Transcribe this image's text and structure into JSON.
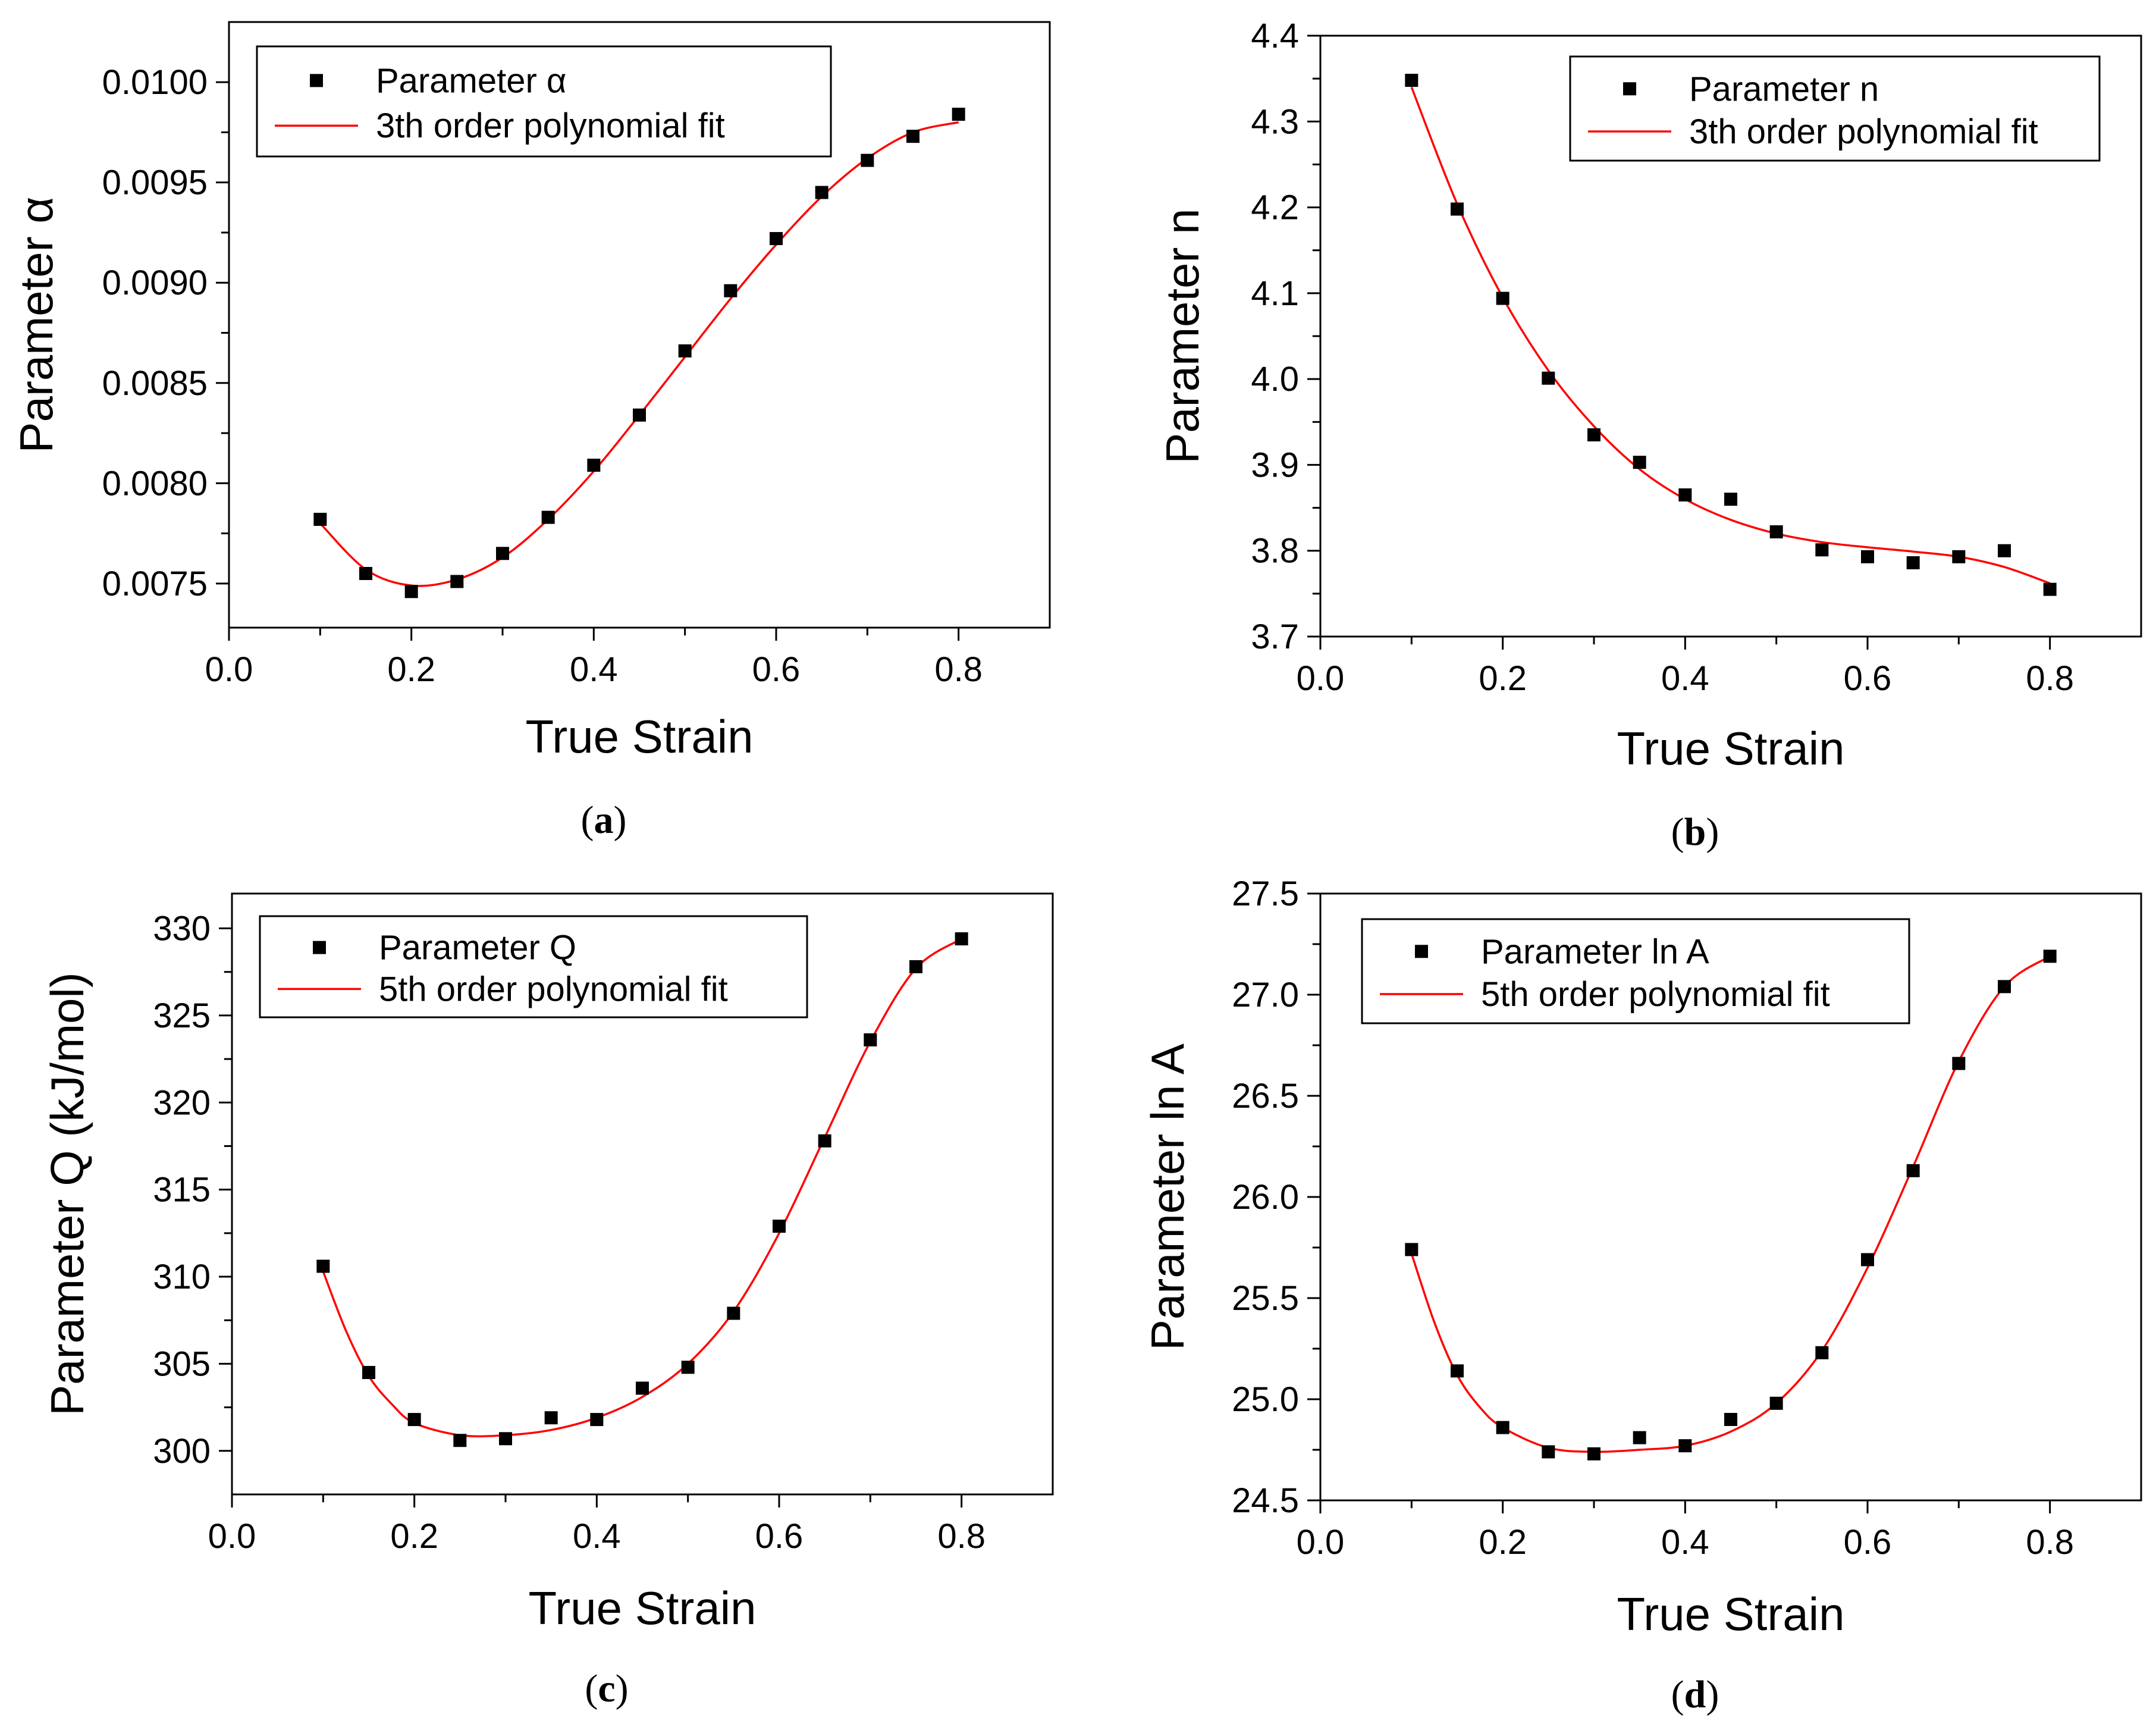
{
  "figure": {
    "background": "#ffffff",
    "marker_color": "#000000",
    "fit_color": "#ff0000"
  },
  "chart_data": [
    {
      "id": "a",
      "type": "scatter",
      "panel_label": "a",
      "xlabel": "True Strain",
      "ylabel": "Parameter α",
      "xlim": [
        0.0,
        0.9
      ],
      "ylim": [
        0.00728,
        0.0103
      ],
      "xticks": [
        0.0,
        0.2,
        0.4,
        0.6,
        0.8
      ],
      "xtick_labels": [
        "0.0",
        "0.2",
        "0.4",
        "0.6",
        "0.8"
      ],
      "yticks": [
        0.0075,
        0.008,
        0.0085,
        0.009,
        0.0095,
        0.01
      ],
      "ytick_labels": [
        "0.0075",
        "0.0080",
        "0.0085",
        "0.0090",
        "0.0095",
        "0.0100"
      ],
      "legend": {
        "placement": "top-left",
        "scatter_label": "Parameter α",
        "fit_label": "3th order polynomial fit"
      },
      "series": [
        {
          "name": "Parameter α",
          "x": [
            0.1,
            0.15,
            0.2,
            0.25,
            0.3,
            0.35,
            0.4,
            0.45,
            0.5,
            0.55,
            0.6,
            0.65,
            0.7,
            0.75,
            0.8
          ],
          "y": [
            0.00782,
            0.00755,
            0.00746,
            0.00751,
            0.00765,
            0.00783,
            0.00809,
            0.00834,
            0.00866,
            0.00896,
            0.00922,
            0.00945,
            0.00961,
            0.00973,
            0.00984
          ]
        }
      ],
      "fit": {
        "name": "3th order polynomial fit",
        "x": [
          0.1,
          0.15,
          0.2,
          0.25,
          0.3,
          0.35,
          0.4,
          0.45,
          0.5,
          0.55,
          0.6,
          0.65,
          0.7,
          0.75,
          0.8
        ],
        "y": [
          0.0078,
          0.00757,
          0.00749,
          0.00752,
          0.00763,
          0.00782,
          0.00806,
          0.00834,
          0.00863,
          0.00892,
          0.00919,
          0.00943,
          0.00962,
          0.00975,
          0.0098
        ]
      }
    },
    {
      "id": "b",
      "type": "scatter",
      "panel_label": "b",
      "xlabel": "True Strain",
      "ylabel": "Parameter n",
      "xlim": [
        0.0,
        0.9
      ],
      "ylim": [
        3.7,
        4.4
      ],
      "xticks": [
        0.0,
        0.2,
        0.4,
        0.6,
        0.8
      ],
      "xtick_labels": [
        "0.0",
        "0.2",
        "0.4",
        "0.6",
        "0.8"
      ],
      "yticks": [
        3.7,
        3.8,
        3.9,
        4.0,
        4.1,
        4.2,
        4.3,
        4.4
      ],
      "ytick_labels": [
        "3.7",
        "3.8",
        "3.9",
        "4.0",
        "4.1",
        "4.2",
        "4.3",
        "4.4"
      ],
      "legend": {
        "placement": "top-right",
        "scatter_label": "Parameter n",
        "fit_label": "3th order polynomial fit"
      },
      "series": [
        {
          "name": "Parameter n",
          "x": [
            0.1,
            0.15,
            0.2,
            0.25,
            0.3,
            0.35,
            0.4,
            0.45,
            0.5,
            0.55,
            0.6,
            0.65,
            0.7,
            0.75,
            0.8
          ],
          "y": [
            4.348,
            4.198,
            4.094,
            4.001,
            3.935,
            3.903,
            3.865,
            3.86,
            3.822,
            3.801,
            3.793,
            3.786,
            3.793,
            3.8,
            3.755
          ]
        }
      ],
      "fit": {
        "name": "3th order polynomial fit",
        "x": [
          0.1,
          0.15,
          0.2,
          0.25,
          0.3,
          0.35,
          0.4,
          0.45,
          0.5,
          0.55,
          0.6,
          0.65,
          0.7,
          0.75,
          0.8
        ],
        "y": [
          4.34,
          4.204,
          4.095,
          4.01,
          3.945,
          3.895,
          3.86,
          3.836,
          3.82,
          3.81,
          3.804,
          3.799,
          3.793,
          3.781,
          3.762
        ]
      }
    },
    {
      "id": "c",
      "type": "scatter",
      "panel_label": "c",
      "xlabel": "True Strain",
      "ylabel": "Parameter Q (kJ/mol)",
      "xlim": [
        0.0,
        0.9
      ],
      "ylim": [
        297.5,
        332.0
      ],
      "xticks": [
        0.0,
        0.2,
        0.4,
        0.6,
        0.8
      ],
      "xtick_labels": [
        "0.0",
        "0.2",
        "0.4",
        "0.6",
        "0.8"
      ],
      "yticks": [
        300,
        305,
        310,
        315,
        320,
        325,
        330
      ],
      "ytick_labels": [
        "300",
        "305",
        "310",
        "315",
        "320",
        "325",
        "330"
      ],
      "legend": {
        "placement": "top-left",
        "scatter_label": "Parameter Q",
        "fit_label": "5th order polynomial fit"
      },
      "series": [
        {
          "name": "Parameter Q",
          "x": [
            0.1,
            0.15,
            0.2,
            0.25,
            0.3,
            0.35,
            0.4,
            0.45,
            0.5,
            0.55,
            0.6,
            0.65,
            0.7,
            0.75,
            0.8
          ],
          "y": [
            310.6,
            304.5,
            301.8,
            300.6,
            300.7,
            301.9,
            301.8,
            303.6,
            304.8,
            307.9,
            312.9,
            317.8,
            323.6,
            327.8,
            329.4
          ]
        }
      ],
      "fit": {
        "name": "5th order polynomial fit",
        "x": [
          0.1,
          0.125,
          0.15,
          0.175,
          0.2,
          0.25,
          0.3,
          0.35,
          0.4,
          0.45,
          0.5,
          0.55,
          0.6,
          0.65,
          0.7,
          0.75,
          0.8
        ],
        "y": [
          310.3,
          306.9,
          304.3,
          302.7,
          301.6,
          300.9,
          300.9,
          301.2,
          301.9,
          303.1,
          305.0,
          308.0,
          312.5,
          318.0,
          323.5,
          327.7,
          329.4
        ]
      }
    },
    {
      "id": "d",
      "type": "scatter",
      "panel_label": "d",
      "xlabel": "True Strain",
      "ylabel": "Parameter ln A",
      "xlim": [
        0.0,
        0.9
      ],
      "ylim": [
        24.5,
        27.5
      ],
      "xticks": [
        0.0,
        0.2,
        0.4,
        0.6,
        0.8
      ],
      "xtick_labels": [
        "0.0",
        "0.2",
        "0.4",
        "0.6",
        "0.8"
      ],
      "yticks": [
        24.5,
        25.0,
        25.5,
        26.0,
        26.5,
        27.0,
        27.5
      ],
      "ytick_labels": [
        "24.5",
        "25.0",
        "25.5",
        "26.0",
        "26.5",
        "27.0",
        "27.5"
      ],
      "legend": {
        "placement": "top-left",
        "scatter_label": "Parameter ln A",
        "fit_label": "5th order polynomial fit"
      },
      "series": [
        {
          "name": "Parameter ln A",
          "x": [
            0.1,
            0.15,
            0.2,
            0.25,
            0.3,
            0.35,
            0.4,
            0.45,
            0.5,
            0.55,
            0.6,
            0.65,
            0.7,
            0.75,
            0.8
          ],
          "y": [
            25.74,
            25.14,
            24.86,
            24.74,
            24.73,
            24.81,
            24.77,
            24.9,
            24.98,
            25.23,
            25.69,
            26.13,
            26.66,
            27.04,
            27.19
          ]
        }
      ],
      "fit": {
        "name": "5th order polynomial fit",
        "x": [
          0.1,
          0.125,
          0.15,
          0.175,
          0.2,
          0.25,
          0.3,
          0.35,
          0.4,
          0.45,
          0.5,
          0.55,
          0.6,
          0.65,
          0.7,
          0.75,
          0.8
        ],
        "y": [
          25.72,
          25.38,
          25.12,
          24.96,
          24.86,
          24.76,
          24.74,
          24.75,
          24.77,
          24.84,
          24.98,
          25.24,
          25.65,
          26.15,
          26.67,
          27.04,
          27.19
        ]
      }
    }
  ]
}
